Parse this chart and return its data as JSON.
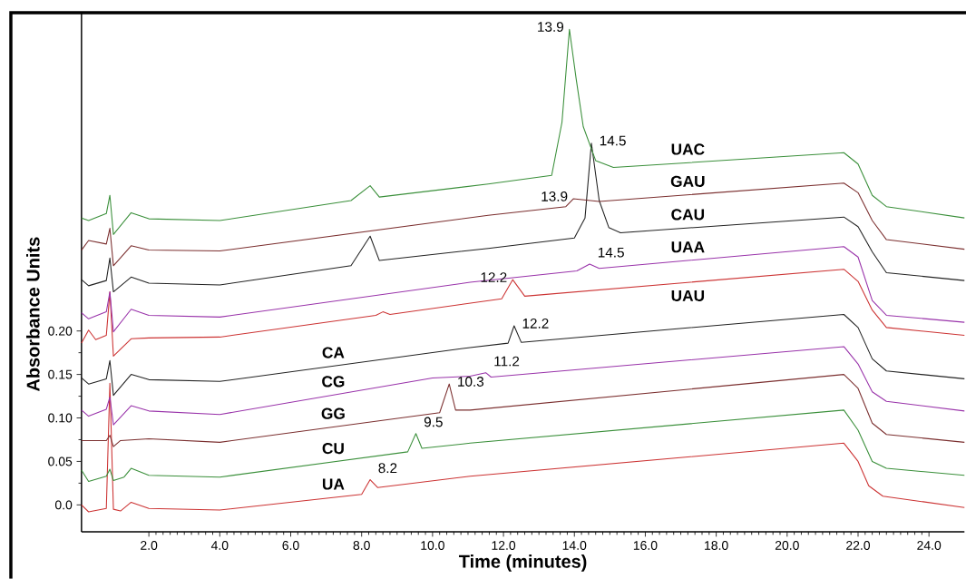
{
  "chart_data": {
    "type": "line",
    "xlabel": "Time (minutes)",
    "ylabel": "Absorbance Units",
    "xlim": [
      0.1,
      25
    ],
    "ylim": [
      -0.031,
      0.565
    ],
    "xticks": [
      {
        "value": 2,
        "label": "2.0"
      },
      {
        "value": 4,
        "label": "4.0"
      },
      {
        "value": 6,
        "label": "6.0"
      },
      {
        "value": 8,
        "label": "8.0"
      },
      {
        "value": 10,
        "label": "10.0"
      },
      {
        "value": 12,
        "label": "12.0"
      },
      {
        "value": 14,
        "label": "14.0"
      },
      {
        "value": 16,
        "label": "16.0"
      },
      {
        "value": 18,
        "label": "18.0"
      },
      {
        "value": 20,
        "label": "20.0"
      },
      {
        "value": 22,
        "label": "22.0"
      },
      {
        "value": 24,
        "label": "24.0"
      }
    ],
    "yticks": [
      {
        "value": 0,
        "label": "0.0"
      },
      0.05,
      {
        "value": 0.1,
        "label": "0.10"
      },
      0.15,
      {
        "value": 0.2,
        "label": "0.20"
      }
    ],
    "series": [
      {
        "name": "UA",
        "color": "#cc3333",
        "x": [
          0.1,
          0.3,
          0.8,
          0.9,
          1.0,
          1.2,
          1.5,
          2.0,
          4.0,
          8.0,
          8.24,
          8.45,
          11.06,
          21.6,
          22.0,
          22.3,
          22.7,
          25
        ],
        "values": [
          0.0,
          -0.008,
          -0.004,
          0.14,
          -0.005,
          -0.007,
          0.003,
          -0.004,
          -0.006,
          0.012,
          0.029,
          0.02,
          0.033,
          0.071,
          0.05,
          0.022,
          0.01,
          -0.003
        ]
      },
      {
        "name": "CU",
        "color": "#3a8f3a",
        "x": [
          0.1,
          0.3,
          0.8,
          0.9,
          1.0,
          1.3,
          1.5,
          2.0,
          4.0,
          9.3,
          9.53,
          9.7,
          11.06,
          21.6,
          22.0,
          22.4,
          22.8,
          25
        ],
        "values": [
          0.04,
          0.027,
          0.033,
          0.041,
          0.028,
          0.032,
          0.042,
          0.034,
          0.032,
          0.061,
          0.082,
          0.065,
          0.071,
          0.109,
          0.086,
          0.05,
          0.042,
          0.034
        ]
      },
      {
        "name": "GG",
        "color": "#7b2f2f",
        "x": [
          0.1,
          0.8,
          0.9,
          1.0,
          1.2,
          2.0,
          4.0,
          10.2,
          10.47,
          10.65,
          11.06,
          21.6,
          22.0,
          22.4,
          22.8,
          25
        ],
        "values": [
          0.074,
          0.074,
          0.08,
          0.067,
          0.074,
          0.076,
          0.072,
          0.106,
          0.139,
          0.109,
          0.109,
          0.15,
          0.134,
          0.094,
          0.081,
          0.072
        ]
      },
      {
        "name": "CG",
        "color": "#9933aa",
        "x": [
          0.1,
          0.3,
          0.8,
          0.9,
          1.0,
          1.5,
          2.0,
          4.0,
          10.0,
          11.06,
          11.5,
          11.65,
          21.6,
          22.0,
          22.4,
          22.8,
          25
        ],
        "values": [
          0.109,
          0.102,
          0.11,
          0.124,
          0.092,
          0.114,
          0.108,
          0.104,
          0.146,
          0.148,
          0.152,
          0.147,
          0.182,
          0.162,
          0.13,
          0.119,
          0.108
        ]
      },
      {
        "name": "CA",
        "color": "#222222",
        "x": [
          0.1,
          0.3,
          0.8,
          0.9,
          1.0,
          1.5,
          2.0,
          4.0,
          11.06,
          12.13,
          12.3,
          12.5,
          21.6,
          22.0,
          22.4,
          22.8,
          25
        ],
        "values": [
          0.146,
          0.139,
          0.145,
          0.166,
          0.126,
          0.15,
          0.144,
          0.142,
          0.181,
          0.186,
          0.206,
          0.187,
          0.219,
          0.204,
          0.168,
          0.154,
          0.145
        ]
      },
      {
        "name": "UAU",
        "color": "#cc3333",
        "x": [
          0.1,
          0.3,
          0.5,
          0.8,
          0.9,
          1.0,
          1.5,
          2.0,
          4.0,
          8.4,
          8.6,
          8.8,
          11.95,
          12.26,
          12.6,
          21.6,
          22.0,
          22.4,
          22.8,
          25
        ],
        "values": [
          0.186,
          0.201,
          0.19,
          0.195,
          0.245,
          0.171,
          0.191,
          0.192,
          0.193,
          0.218,
          0.222,
          0.219,
          0.237,
          0.259,
          0.24,
          0.271,
          0.257,
          0.224,
          0.204,
          0.195
        ]
      },
      {
        "name": "UAA",
        "color": "#9933aa",
        "x": [
          0.1,
          0.3,
          0.8,
          0.9,
          1.0,
          1.5,
          2.0,
          4.0,
          11.06,
          14.07,
          14.43,
          14.7,
          21.6,
          22.0,
          22.4,
          22.8,
          25
        ],
        "values": [
          0.221,
          0.214,
          0.222,
          0.245,
          0.199,
          0.225,
          0.218,
          0.216,
          0.256,
          0.269,
          0.277,
          0.272,
          0.297,
          0.285,
          0.235,
          0.218,
          0.21
        ]
      },
      {
        "name": "CAU",
        "color": "#222222",
        "x": [
          0.1,
          0.3,
          0.8,
          0.9,
          1.0,
          1.5,
          2.0,
          4.0,
          7.7,
          8.24,
          8.5,
          11.57,
          14.0,
          14.3,
          14.48,
          14.7,
          14.97,
          15.3,
          21.6,
          22.0,
          22.4,
          22.8,
          25
        ],
        "values": [
          0.259,
          0.252,
          0.258,
          0.284,
          0.245,
          0.262,
          0.255,
          0.253,
          0.275,
          0.309,
          0.281,
          0.295,
          0.307,
          0.33,
          0.416,
          0.35,
          0.319,
          0.313,
          0.331,
          0.32,
          0.291,
          0.267,
          0.258
        ]
      },
      {
        "name": "GAU",
        "color": "#7b2f2f",
        "x": [
          0.1,
          0.3,
          0.8,
          0.9,
          1.0,
          1.5,
          2.0,
          4.0,
          11.57,
          13.76,
          13.97,
          14.7,
          21.6,
          22.0,
          22.4,
          22.8,
          25
        ],
        "values": [
          0.293,
          0.304,
          0.3,
          0.318,
          0.275,
          0.298,
          0.293,
          0.292,
          0.333,
          0.343,
          0.352,
          0.349,
          0.37,
          0.359,
          0.327,
          0.305,
          0.294
        ]
      },
      {
        "name": "UAC",
        "color": "#3a8f3a",
        "x": [
          0.1,
          0.3,
          0.8,
          0.9,
          1.0,
          1.5,
          2.0,
          4.0,
          7.7,
          8.24,
          8.5,
          11.57,
          13.36,
          13.65,
          13.86,
          14.05,
          14.25,
          14.6,
          15.1,
          21.6,
          22.0,
          22.4,
          22.8,
          25
        ],
        "values": [
          0.33,
          0.327,
          0.335,
          0.356,
          0.311,
          0.336,
          0.329,
          0.327,
          0.35,
          0.367,
          0.354,
          0.369,
          0.379,
          0.44,
          0.547,
          0.49,
          0.435,
          0.396,
          0.388,
          0.405,
          0.392,
          0.356,
          0.343,
          0.33
        ]
      }
    ],
    "annotations": [
      {
        "text": "13.9",
        "x": 13.86,
        "y": 0.547
      },
      {
        "text": "14.5",
        "x": 14.48,
        "y": 0.416
      },
      {
        "text": "13.9",
        "x": 13.97,
        "y": 0.352
      },
      {
        "text": "14.5",
        "x": 14.43,
        "y": 0.277
      },
      {
        "text": "12.2",
        "x": 12.26,
        "y": 0.259
      },
      {
        "text": "12.2",
        "x": 12.3,
        "y": 0.206
      },
      {
        "text": "11.2",
        "x": 11.5,
        "y": 0.152
      },
      {
        "text": "10.3",
        "x": 10.47,
        "y": 0.139
      },
      {
        "text": "9.5",
        "x": 9.53,
        "y": 0.082
      },
      {
        "text": "8.2",
        "x": 8.24,
        "y": 0.029
      }
    ]
  }
}
